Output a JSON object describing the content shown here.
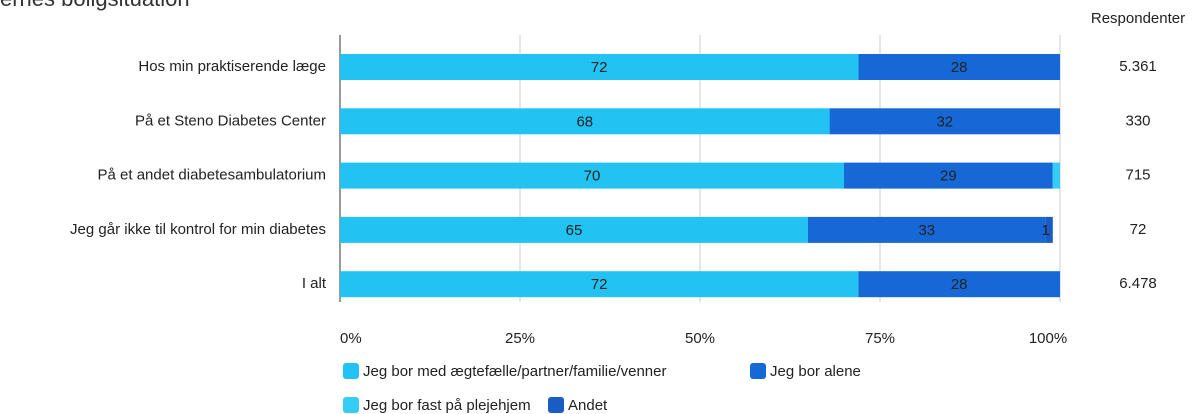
{
  "chart_data": {
    "type": "stacked-barh",
    "title": "ernes boligsituation",
    "categories": [
      "Hos min praktiserende læge",
      "På et Steno Diabetes Center",
      "På et andet diabetesambulatorium",
      "Jeg går ikke til kontrol for min diabetes",
      "I alt"
    ],
    "series": [
      {
        "name": "Jeg bor med ægtefælle/partner/familie/venner",
        "color": "#22c3f2",
        "values": [
          72,
          68,
          70,
          65,
          72
        ],
        "value_labels": [
          "72",
          "68",
          "70",
          "65",
          "72"
        ]
      },
      {
        "name": "Jeg bor alene",
        "color": "#1668d6",
        "values": [
          28,
          32,
          29,
          33,
          28
        ],
        "value_labels": [
          "28",
          "32",
          "29",
          "33",
          "28"
        ]
      },
      {
        "name": "Jeg bor fast på plejehjem",
        "color": "#35cdf6",
        "values": [
          0,
          0,
          1,
          0,
          0
        ],
        "value_labels": [
          null,
          null,
          null,
          null,
          null
        ]
      },
      {
        "name": "Andet",
        "color": "#1a5cc4",
        "values": [
          0,
          0,
          0,
          1,
          0
        ],
        "value_labels": [
          null,
          null,
          null,
          "1",
          null
        ]
      }
    ],
    "xlim": [
      0,
      100
    ],
    "xticks": [
      {
        "value": 0,
        "label": "0%"
      },
      {
        "value": 25,
        "label": "25%"
      },
      {
        "value": 50,
        "label": "50%"
      },
      {
        "value": 75,
        "label": "75%"
      },
      {
        "value": 100,
        "label": "100%"
      }
    ],
    "grid": true,
    "respondents": {
      "label": "Respondenter",
      "values": [
        "5.361",
        "330",
        "715",
        "72",
        "6.478"
      ]
    }
  }
}
